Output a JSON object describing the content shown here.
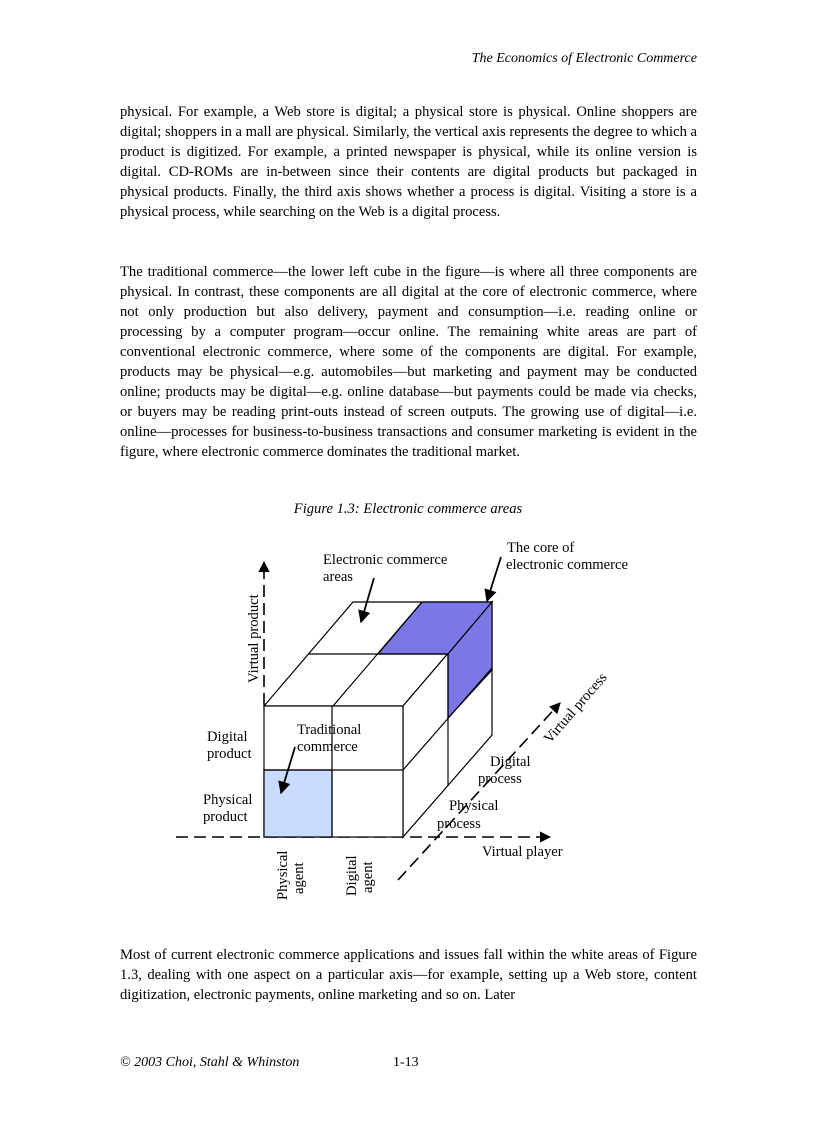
{
  "header": {
    "running_title": "The Economics of Electronic Commerce"
  },
  "paragraphs": [
    "physical. For example, a Web store is digital; a physical store is physical. Online shoppers are digital; shoppers in a mall are physical. Similarly, the vertical axis represents the degree to which a product is digitized. For example, a printed newspaper is physical, while its online version is digital. CD-ROMs are in-between since their contents are digital products but packaged in physical products. Finally, the third axis shows whether a process is digital. Visiting a store is a physical process, while searching on the Web is a digital process.",
    "The traditional commerce—the lower left cube in the figure—is where all three components are physical. In contrast, these components are all digital at the core of electronic commerce, where not only production but also delivery, payment and consumption—i.e. reading online or processing by a computer program—occur online. The remaining white areas are part of conventional electronic commerce, where some of the components are digital. For example, products may be physical—e.g. automobiles—but marketing and payment may be conducted online; products may be digital—e.g. online database—but payments could be made via checks, or buyers may be reading print-outs instead of screen outputs. The growing use of digital—i.e. online—processes for business-to-business transactions and consumer marketing is evident in the figure, where electronic commerce dominates the traditional market.",
    "Most of current electronic commerce applications and issues fall within the white areas of Figure 1.3, dealing with one aspect on a particular axis—for example, setting up a Web store, content digitization, electronic payments, online marketing and so on. Later"
  ],
  "figure": {
    "caption": "Figure 1.3: Electronic commerce areas",
    "labels": {
      "ec_areas_1": "Electronic commerce",
      "ec_areas_2": "areas",
      "core_1": "The core of",
      "core_2": "electronic commerce",
      "virtual_product": "Virtual product",
      "virtual_process": "Virtual process",
      "virtual_player": "Virtual player",
      "digital_product_1": "Digital",
      "digital_product_2": "product",
      "physical_product_1": "Physical",
      "physical_product_2": "product",
      "traditional_1": "Traditional",
      "traditional_2": "commerce",
      "digital_process_1": "Digital",
      "digital_process_2": "process",
      "physical_process_1": "Physical",
      "physical_process_2": "process",
      "physical_agent_1": "Physical",
      "physical_agent_2": "agent",
      "digital_agent_1": "Digital",
      "digital_agent_2": "agent"
    },
    "colors": {
      "core": "#7b78e6",
      "traditional": "#c8dcff"
    }
  },
  "footer": {
    "copyright": "© 2003 Choi, Stahl & Whinston",
    "page_number": "1-13"
  }
}
